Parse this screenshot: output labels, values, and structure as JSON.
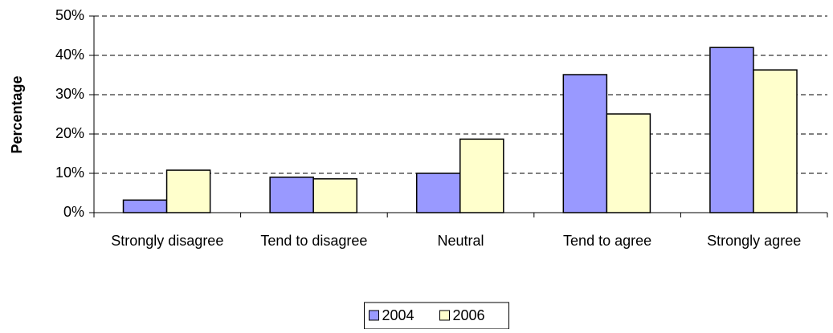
{
  "chart_data": {
    "type": "bar",
    "y_label": "Percentage",
    "categories": [
      "Strongly disagree",
      "Tend to disagree",
      "Neutral",
      "Tend to agree",
      "Strongly agree"
    ],
    "series": [
      {
        "name": "2004",
        "color": "#9999ff",
        "values": [
          3.2,
          9,
          10,
          35.1,
          42
        ]
      },
      {
        "name": "2006",
        "color": "#ffffcc",
        "values": [
          10.8,
          8.6,
          18.7,
          25.1,
          36.3
        ]
      }
    ],
    "ylim": [
      0,
      50
    ],
    "yticks": [
      {
        "value": 0,
        "label": "0%"
      },
      {
        "value": 10,
        "label": "10%"
      },
      {
        "value": 20,
        "label": "20%"
      },
      {
        "value": 30,
        "label": "30%"
      },
      {
        "value": 40,
        "label": "40%"
      },
      {
        "value": 50,
        "label": "50%"
      }
    ],
    "grid": true,
    "legend": "bottom"
  }
}
